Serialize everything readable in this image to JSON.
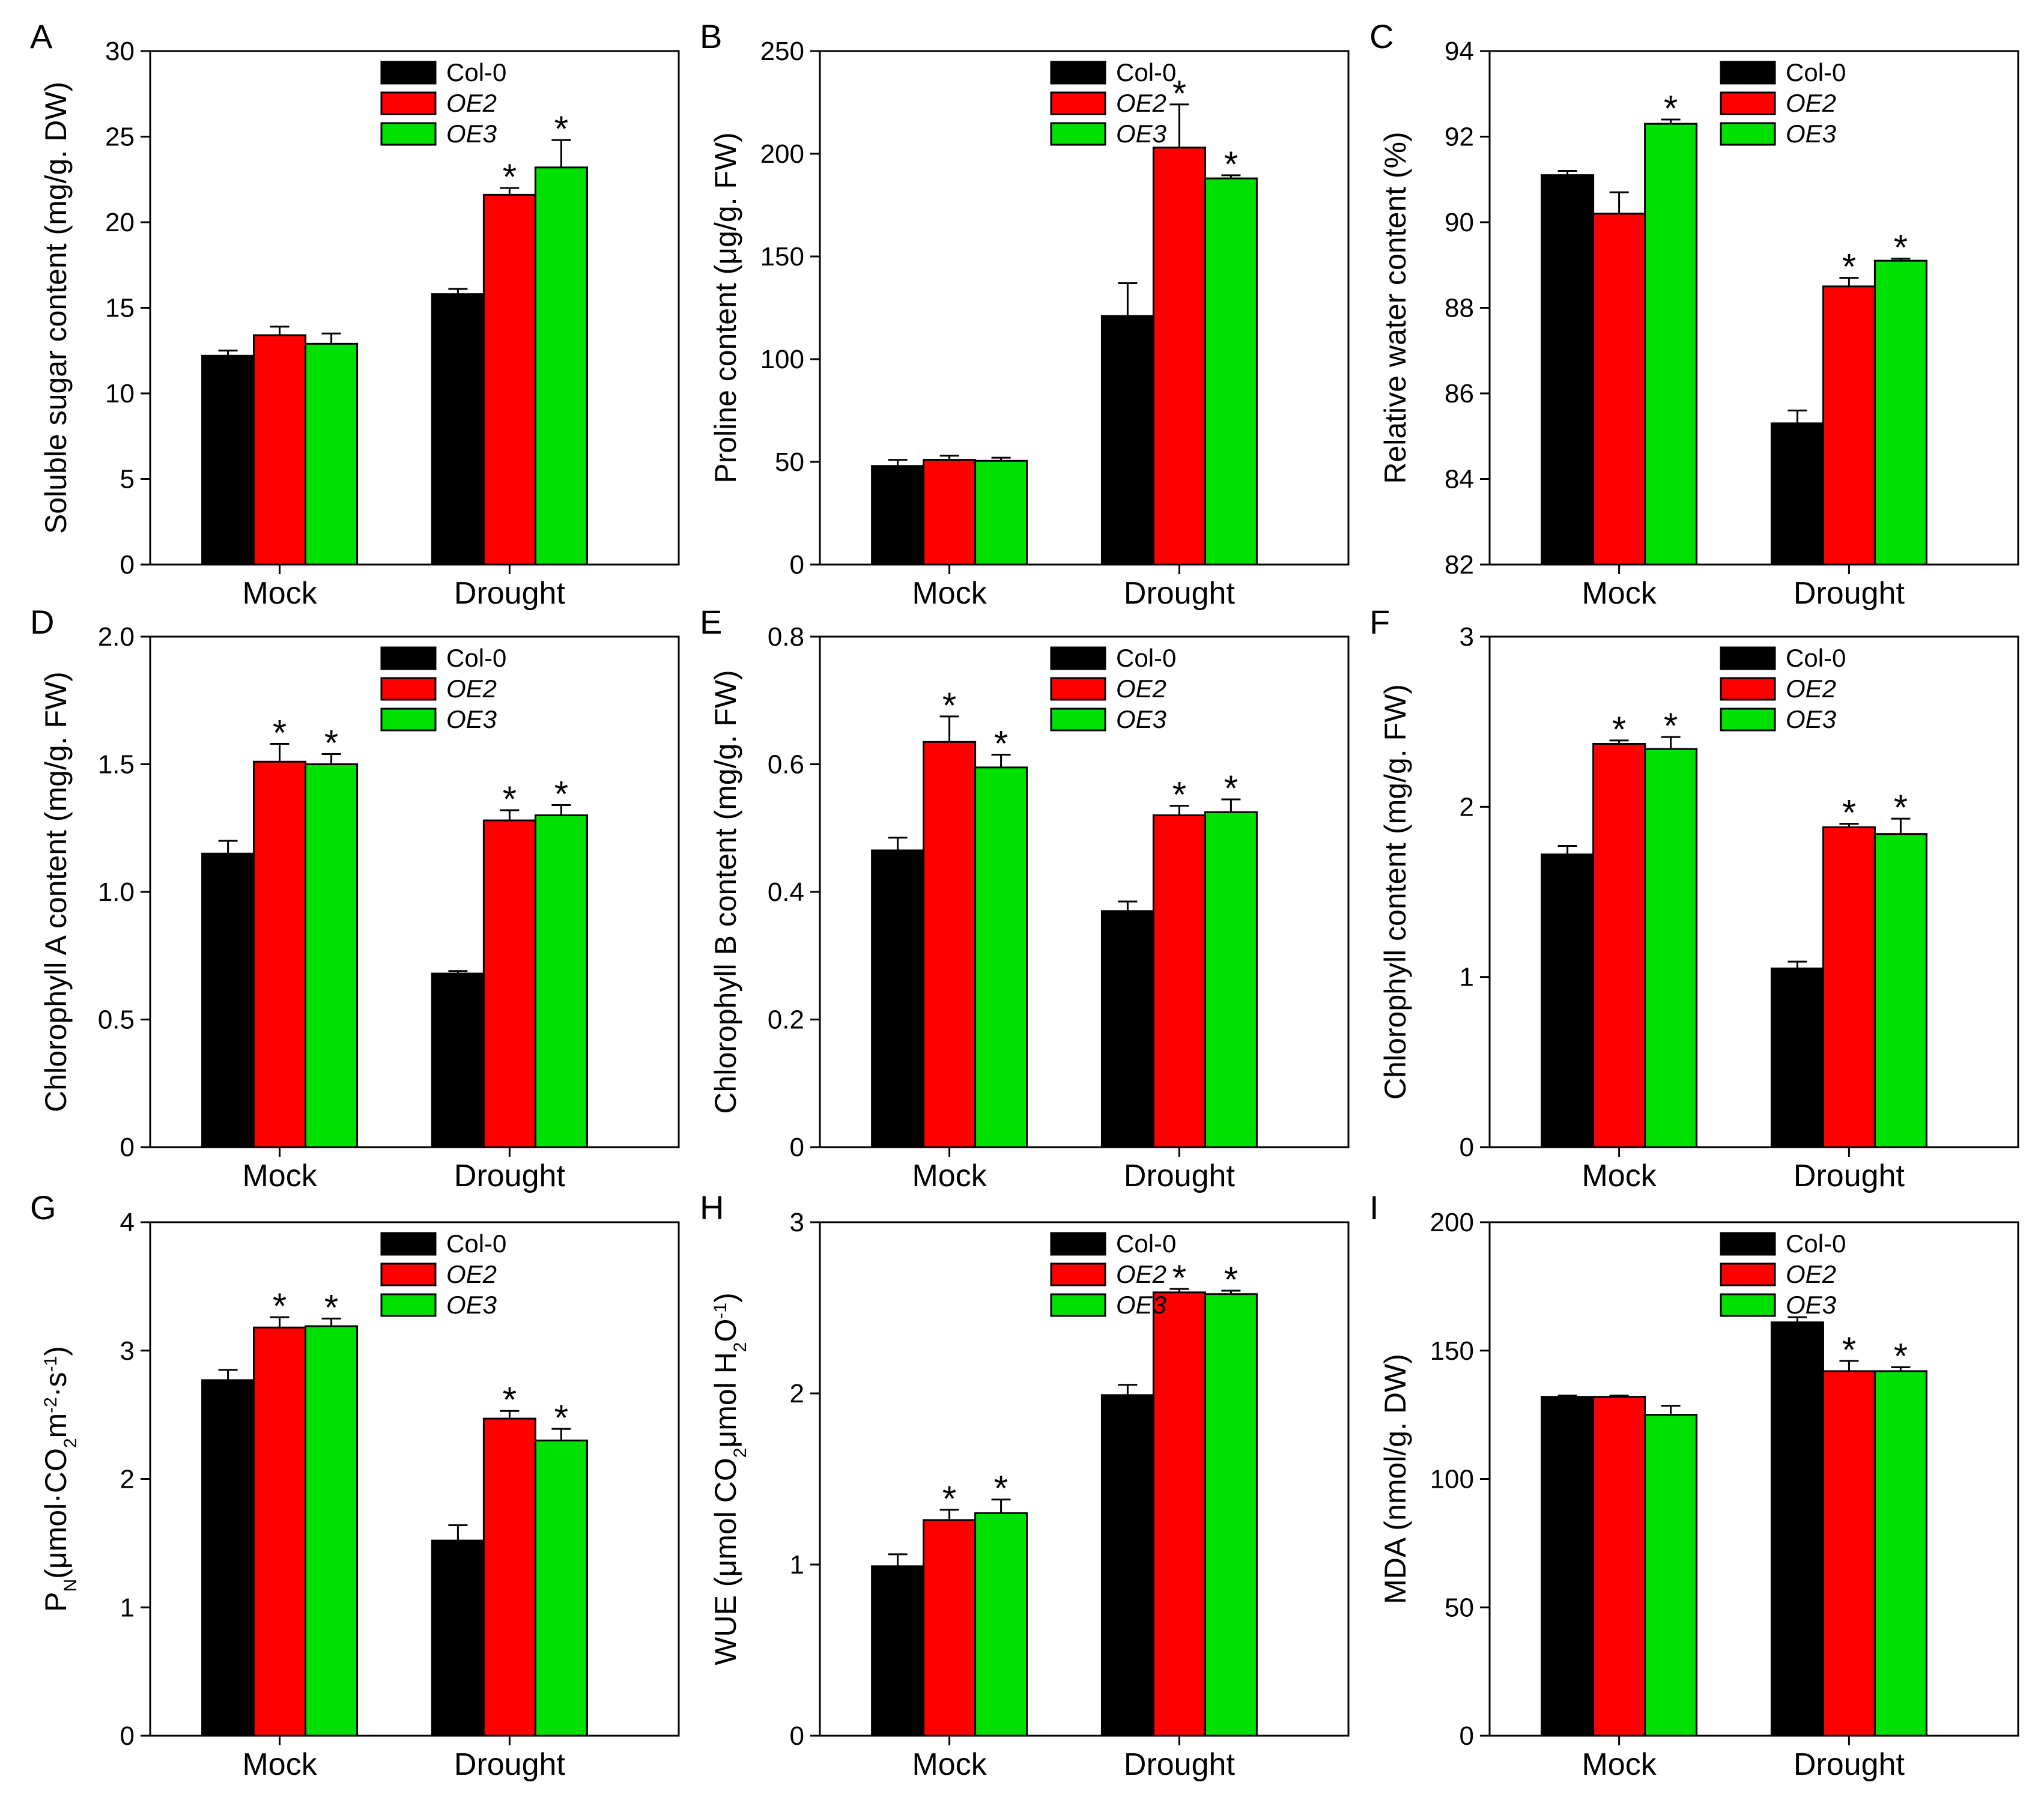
{
  "figure": {
    "categories": [
      "Mock",
      "Drought"
    ],
    "series_names": [
      "Col-0",
      "OE2",
      "OE3"
    ],
    "legend_italic": [
      false,
      true,
      true
    ],
    "colors": {
      "Col-0": "#000000",
      "OE2": "#ff0000",
      "OE3": "#00e000"
    },
    "significance_marker": "*"
  },
  "chart_data": [
    {
      "panel": "A",
      "type": "bar",
      "ylabel": "Soluble sugar content (mg/g. DW)",
      "ylim": [
        0,
        30
      ],
      "yticks": [
        0,
        5,
        10,
        15,
        20,
        25,
        30
      ],
      "categories": [
        "Mock",
        "Drought"
      ],
      "series": [
        {
          "name": "Col-0",
          "values": [
            12.2,
            15.8
          ],
          "errors": [
            0.3,
            0.3
          ],
          "sig": [
            false,
            false
          ]
        },
        {
          "name": "OE2",
          "values": [
            13.4,
            21.6
          ],
          "errors": [
            0.5,
            0.4
          ],
          "sig": [
            false,
            true
          ]
        },
        {
          "name": "OE3",
          "values": [
            12.9,
            23.2
          ],
          "errors": [
            0.6,
            1.6
          ],
          "sig": [
            false,
            true
          ]
        }
      ]
    },
    {
      "panel": "B",
      "type": "bar",
      "ylabel": "Proline content (μg/g. FW)",
      "ylim": [
        0,
        250
      ],
      "yticks": [
        0,
        50,
        100,
        150,
        200,
        250
      ],
      "categories": [
        "Mock",
        "Drought"
      ],
      "series": [
        {
          "name": "Col-0",
          "values": [
            48,
            121
          ],
          "errors": [
            3,
            16
          ],
          "sig": [
            false,
            false
          ]
        },
        {
          "name": "OE2",
          "values": [
            51,
            203
          ],
          "errors": [
            2,
            21
          ],
          "sig": [
            false,
            true
          ]
        },
        {
          "name": "OE3",
          "values": [
            50.5,
            188
          ],
          "errors": [
            1.5,
            1.5
          ],
          "sig": [
            false,
            true
          ]
        }
      ]
    },
    {
      "panel": "C",
      "type": "bar",
      "ylabel": "Relative water content (%)",
      "ylim": [
        82,
        94
      ],
      "yticks": [
        82,
        84,
        86,
        88,
        90,
        92,
        94
      ],
      "categories": [
        "Mock",
        "Drought"
      ],
      "series": [
        {
          "name": "Col-0",
          "values": [
            91.1,
            85.3
          ],
          "errors": [
            0.1,
            0.3
          ],
          "sig": [
            false,
            false
          ]
        },
        {
          "name": "OE2",
          "values": [
            90.2,
            88.5
          ],
          "errors": [
            0.5,
            0.2
          ],
          "sig": [
            false,
            true
          ]
        },
        {
          "name": "OE3",
          "values": [
            92.3,
            89.1
          ],
          "errors": [
            0.1,
            0.05
          ],
          "sig": [
            true,
            true
          ]
        }
      ]
    },
    {
      "panel": "D",
      "type": "bar",
      "ylabel": "Chlorophyll A content (mg/g. FW)",
      "ylim": [
        0,
        2.0
      ],
      "yticks": [
        0,
        0.5,
        1.0,
        1.5,
        2.0
      ],
      "tick_decimals": 1,
      "categories": [
        "Mock",
        "Drought"
      ],
      "series": [
        {
          "name": "Col-0",
          "values": [
            1.15,
            0.68
          ],
          "errors": [
            0.05,
            0.01
          ],
          "sig": [
            false,
            false
          ]
        },
        {
          "name": "OE2",
          "values": [
            1.51,
            1.28
          ],
          "errors": [
            0.07,
            0.04
          ],
          "sig": [
            true,
            true
          ]
        },
        {
          "name": "OE3",
          "values": [
            1.5,
            1.3
          ],
          "errors": [
            0.04,
            0.04
          ],
          "sig": [
            true,
            true
          ]
        }
      ]
    },
    {
      "panel": "E",
      "type": "bar",
      "ylabel": "Chlorophyll B content (mg/g. FW)",
      "ylim": [
        0,
        0.8
      ],
      "yticks": [
        0,
        0.2,
        0.4,
        0.6,
        0.8
      ],
      "tick_decimals": 1,
      "categories": [
        "Mock",
        "Drought"
      ],
      "series": [
        {
          "name": "Col-0",
          "values": [
            0.465,
            0.37
          ],
          "errors": [
            0.02,
            0.015
          ],
          "sig": [
            false,
            false
          ]
        },
        {
          "name": "OE2",
          "values": [
            0.635,
            0.52
          ],
          "errors": [
            0.04,
            0.015
          ],
          "sig": [
            true,
            true
          ]
        },
        {
          "name": "OE3",
          "values": [
            0.595,
            0.525
          ],
          "errors": [
            0.02,
            0.02
          ],
          "sig": [
            true,
            true
          ]
        }
      ]
    },
    {
      "panel": "F",
      "type": "bar",
      "ylabel": "Chlorophyll content (mg/g. FW)",
      "ylim": [
        0,
        3
      ],
      "yticks": [
        0,
        1,
        2,
        3
      ],
      "categories": [
        "Mock",
        "Drought"
      ],
      "series": [
        {
          "name": "Col-0",
          "values": [
            1.72,
            1.05
          ],
          "errors": [
            0.05,
            0.04
          ],
          "sig": [
            false,
            false
          ]
        },
        {
          "name": "OE2",
          "values": [
            2.37,
            1.88
          ],
          "errors": [
            0.02,
            0.02
          ],
          "sig": [
            true,
            true
          ]
        },
        {
          "name": "OE3",
          "values": [
            2.34,
            1.84
          ],
          "errors": [
            0.07,
            0.09
          ],
          "sig": [
            true,
            true
          ]
        }
      ]
    },
    {
      "panel": "G",
      "type": "bar",
      "ylabel": "PN(μmol·CO2m-2·s-1)",
      "ylim": [
        0,
        4
      ],
      "yticks": [
        0,
        1,
        2,
        3,
        4
      ],
      "categories": [
        "Mock",
        "Drought"
      ],
      "series": [
        {
          "name": "Col-0",
          "values": [
            2.77,
            1.52
          ],
          "errors": [
            0.08,
            0.12
          ],
          "sig": [
            false,
            false
          ]
        },
        {
          "name": "OE2",
          "values": [
            3.18,
            2.47
          ],
          "errors": [
            0.08,
            0.06
          ],
          "sig": [
            true,
            true
          ]
        },
        {
          "name": "OE3",
          "values": [
            3.19,
            2.3
          ],
          "errors": [
            0.06,
            0.09
          ],
          "sig": [
            true,
            true
          ]
        }
      ]
    },
    {
      "panel": "H",
      "type": "bar",
      "ylabel": "WUE (μmol CO2μmol H2O-1)",
      "ylim": [
        0,
        3
      ],
      "yticks": [
        0,
        1,
        2,
        3
      ],
      "categories": [
        "Mock",
        "Drought"
      ],
      "series": [
        {
          "name": "Col-0",
          "values": [
            0.99,
            1.99
          ],
          "errors": [
            0.07,
            0.06
          ],
          "sig": [
            false,
            false
          ]
        },
        {
          "name": "OE2",
          "values": [
            1.26,
            2.59
          ],
          "errors": [
            0.06,
            0.02
          ],
          "sig": [
            true,
            true
          ]
        },
        {
          "name": "OE3",
          "values": [
            1.3,
            2.58
          ],
          "errors": [
            0.08,
            0.02
          ],
          "sig": [
            true,
            true
          ]
        }
      ]
    },
    {
      "panel": "I",
      "type": "bar",
      "ylabel": "MDA (nmol/g. DW)",
      "ylim": [
        0,
        200
      ],
      "yticks": [
        0,
        50,
        100,
        150,
        200
      ],
      "categories": [
        "Mock",
        "Drought"
      ],
      "series": [
        {
          "name": "Col-0",
          "values": [
            132,
            161
          ],
          "errors": [
            0.5,
            2
          ],
          "sig": [
            false,
            false
          ]
        },
        {
          "name": "OE2",
          "values": [
            132,
            142
          ],
          "errors": [
            0.5,
            4
          ],
          "sig": [
            false,
            true
          ]
        },
        {
          "name": "OE3",
          "values": [
            125,
            142
          ],
          "errors": [
            3.5,
            1.5
          ],
          "sig": [
            false,
            true
          ]
        }
      ]
    }
  ]
}
